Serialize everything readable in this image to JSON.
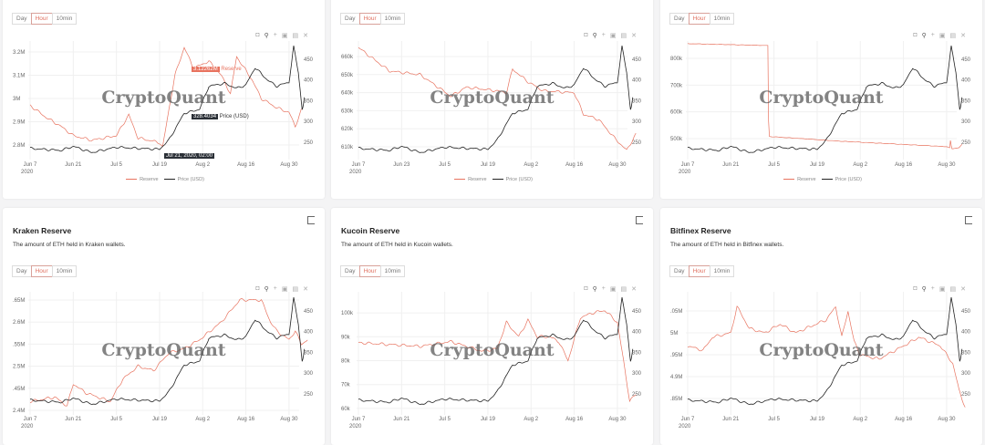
{
  "ranges": [
    "Day",
    "Hour",
    "10min"
  ],
  "active_range": "Hour",
  "watermark": "CryptoQuant",
  "toolbar_icons": [
    "camera-icon",
    "zoom-icon",
    "pan-icon",
    "autoscale-icon",
    "reset-icon",
    "close-icon"
  ],
  "legend": {
    "reserve": "Reserve",
    "price": "Price (USD)"
  },
  "colors": {
    "reserve": "#e8735f",
    "price": "#222222"
  },
  "year_label": "2020",
  "tooltip": {
    "reserve_value": "3.12262M",
    "reserve_label": "Reserve",
    "price_value": "328.4034",
    "price_label": "Price (USD)",
    "x_label": "Jul 21, 2020, 02:00"
  },
  "chart_data": [
    {
      "type": "line",
      "title": "",
      "description": "",
      "x_ticks": [
        "Jun 7",
        "Jun 21",
        "Jul 5",
        "Jul 19",
        "Aug 2",
        "Aug 16",
        "Aug 30"
      ],
      "y_ticks": [
        {
          "v": 3.2,
          "l": "3.2M"
        },
        {
          "v": 3.1,
          "l": "3.1M"
        },
        {
          "v": 3.0,
          "l": "3M"
        },
        {
          "v": 2.9,
          "l": "2.9M"
        },
        {
          "v": 2.8,
          "l": "2.8M"
        }
      ],
      "ylim": [
        2.737,
        3.247
      ],
      "y2_ticks": [
        450,
        400,
        350,
        300,
        250
      ],
      "y2lim": [
        208,
        494
      ],
      "reserve": [
        [
          0,
          2.97
        ],
        [
          5,
          2.92
        ],
        [
          10,
          2.88
        ],
        [
          14,
          2.84
        ],
        [
          20,
          2.82
        ],
        [
          28,
          2.84
        ],
        [
          32,
          2.93
        ],
        [
          35,
          2.83
        ],
        [
          42,
          2.81
        ],
        [
          43,
          2.79
        ],
        [
          45,
          2.95
        ],
        [
          47,
          3.1
        ],
        [
          50,
          3.22
        ],
        [
          53,
          3.13
        ],
        [
          58,
          3.16
        ],
        [
          62,
          3.1
        ],
        [
          65,
          3.02
        ],
        [
          67,
          3.18
        ],
        [
          70,
          3.12
        ],
        [
          72,
          3.08
        ],
        [
          75,
          3.0
        ],
        [
          80,
          2.96
        ],
        [
          84,
          2.94
        ],
        [
          86,
          2.88
        ],
        [
          88,
          2.95
        ]
      ]
    },
    {
      "type": "line",
      "title": "",
      "description": "",
      "x_ticks": [
        "Jun 7",
        "Jun 23",
        "Jul 5",
        "Jul 19",
        "Aug 2",
        "Aug 16",
        "Aug 30"
      ],
      "y_ticks": [
        {
          "v": 660,
          "l": "660k"
        },
        {
          "v": 650,
          "l": "650k"
        },
        {
          "v": 640,
          "l": "640k"
        },
        {
          "v": 630,
          "l": "630k"
        },
        {
          "v": 620,
          "l": "620k"
        },
        {
          "v": 610,
          "l": "610k"
        }
      ],
      "ylim": [
        602.9,
        668.6
      ],
      "y2_ticks": [
        450,
        400,
        350,
        300,
        250
      ],
      "y2lim": [
        208,
        494
      ],
      "reserve": [
        [
          0,
          665
        ],
        [
          10,
          652
        ],
        [
          20,
          650
        ],
        [
          30,
          638
        ],
        [
          35,
          643
        ],
        [
          45,
          641
        ],
        [
          48,
          640
        ],
        [
          50,
          653
        ],
        [
          55,
          646
        ],
        [
          60,
          641
        ],
        [
          70,
          640
        ],
        [
          73,
          628
        ],
        [
          78,
          625
        ],
        [
          83,
          615
        ],
        [
          87,
          608
        ],
        [
          90,
          617
        ]
      ]
    },
    {
      "type": "line",
      "title": "",
      "description": "",
      "x_ticks": [
        "Jun 7",
        "Jun 21",
        "Jul 5",
        "Jul 19",
        "Aug 2",
        "Aug 16",
        "Aug 30"
      ],
      "y_ticks": [
        {
          "v": 800,
          "l": "800k"
        },
        {
          "v": 700,
          "l": "700k"
        },
        {
          "v": 600,
          "l": "600k"
        },
        {
          "v": 500,
          "l": "500k"
        }
      ],
      "ylim": [
        421.6,
        864.8
      ],
      "y2_ticks": [
        450,
        400,
        350,
        300,
        250
      ],
      "y2lim": [
        208,
        494
      ],
      "reserve": [
        [
          0,
          855
        ],
        [
          26,
          848
        ],
        [
          26.3,
          508
        ],
        [
          50,
          490
        ],
        [
          84,
          470
        ],
        [
          85,
          465
        ],
        [
          85.3,
          498
        ],
        [
          85.6,
          462
        ],
        [
          88,
          466
        ],
        [
          89,
          478
        ]
      ]
    },
    {
      "type": "line",
      "title": "Kraken Reserve",
      "description": "The amount of ETH held in Kraken wallets.",
      "x_ticks": [
        "Jun 7",
        "Jun 21",
        "Jul 5",
        "Jul 19",
        "Aug 2",
        "Aug 16",
        "Aug 30"
      ],
      "y_ticks": [
        {
          "v": 2.65,
          "l": ".65M"
        },
        {
          "v": 2.6,
          "l": "2.6M"
        },
        {
          "v": 2.55,
          "l": ".55M"
        },
        {
          "v": 2.5,
          "l": "2.5M"
        },
        {
          "v": 2.45,
          "l": ".45M"
        },
        {
          "v": 2.4,
          "l": "2.4M"
        }
      ],
      "ylim": [
        2.3897,
        2.6686
      ],
      "y2_ticks": [
        450,
        400,
        350,
        300,
        250
      ],
      "y2lim": [
        199.5,
        496
      ],
      "reserve": [
        [
          0,
          2.42
        ],
        [
          8,
          2.43
        ],
        [
          12,
          2.41
        ],
        [
          14,
          2.46
        ],
        [
          18,
          2.44
        ],
        [
          22,
          2.43
        ],
        [
          26,
          2.42
        ],
        [
          30,
          2.47
        ],
        [
          35,
          2.5
        ],
        [
          40,
          2.49
        ],
        [
          45,
          2.53
        ],
        [
          50,
          2.54
        ],
        [
          55,
          2.56
        ],
        [
          62,
          2.6
        ],
        [
          68,
          2.65
        ],
        [
          75,
          2.65
        ],
        [
          78,
          2.6
        ],
        [
          80,
          2.58
        ],
        [
          84,
          2.56
        ],
        [
          86,
          2.58
        ],
        [
          88,
          2.55
        ],
        [
          90,
          2.56
        ]
      ]
    },
    {
      "type": "line",
      "title": "Kucoin Reserve",
      "description": "The amount of ETH held in Kucoin wallets.",
      "x_ticks": [
        "Jun 7",
        "Jun 21",
        "Jul 5",
        "Jul 19",
        "Aug 2",
        "Aug 16",
        "Aug 30"
      ],
      "y_ticks": [
        {
          "v": 100,
          "l": "100k"
        },
        {
          "v": 90,
          "l": "90k"
        },
        {
          "v": 80,
          "l": "80k"
        },
        {
          "v": 70,
          "l": "70k"
        },
        {
          "v": 60,
          "l": "60k"
        }
      ],
      "ylim": [
        57.3,
        108.8
      ],
      "y2_ticks": [
        450,
        400,
        350,
        300,
        250
      ],
      "y2lim": [
        199.5,
        496
      ],
      "reserve": [
        [
          0,
          87.5
        ],
        [
          20,
          86
        ],
        [
          30,
          88
        ],
        [
          40,
          84
        ],
        [
          45,
          85
        ],
        [
          48,
          96
        ],
        [
          52,
          90
        ],
        [
          55,
          97
        ],
        [
          58,
          90
        ],
        [
          62,
          90
        ],
        [
          65,
          88
        ],
        [
          68,
          80
        ],
        [
          72,
          98
        ],
        [
          76,
          100
        ],
        [
          80,
          101
        ],
        [
          84,
          96
        ],
        [
          86,
          80
        ],
        [
          88,
          63
        ],
        [
          90,
          66
        ]
      ]
    },
    {
      "type": "line",
      "title": "Bitfinex Reserve",
      "description": "The amount of ETH held in Bitfinex wallets.",
      "x_ticks": [
        "Jun 7",
        "Jun 21",
        "Jul 5",
        "Jul 19",
        "Aug 2",
        "Aug 16",
        "Aug 30"
      ],
      "y_ticks": [
        {
          "v": 5.05,
          "l": ".05M"
        },
        {
          "v": 5.0,
          "l": "5M"
        },
        {
          "v": 4.95,
          "l": ".95M"
        },
        {
          "v": 4.9,
          "l": "4.9M"
        },
        {
          "v": 4.85,
          "l": ".85M"
        }
      ],
      "ylim": [
        4.8125,
        5.0938
      ],
      "y2_ticks": [
        450,
        400,
        350,
        300,
        250
      ],
      "y2lim": [
        199.5,
        496
      ],
      "reserve": [
        [
          0,
          4.97
        ],
        [
          5,
          4.96
        ],
        [
          8,
          4.99
        ],
        [
          14,
          5.0
        ],
        [
          16,
          5.06
        ],
        [
          20,
          5.01
        ],
        [
          25,
          5.0
        ],
        [
          30,
          5.02
        ],
        [
          35,
          5.0
        ],
        [
          45,
          5.03
        ],
        [
          48,
          5.06
        ],
        [
          50,
          4.99
        ],
        [
          52,
          5.05
        ],
        [
          54,
          4.98
        ],
        [
          56,
          4.95
        ],
        [
          62,
          4.94
        ],
        [
          70,
          4.97
        ],
        [
          75,
          4.99
        ],
        [
          82,
          4.97
        ],
        [
          86,
          4.93
        ],
        [
          88,
          4.87
        ],
        [
          90,
          4.83
        ]
      ]
    }
  ],
  "price": [
    [
      0,
      235
    ],
    [
      10,
      230
    ],
    [
      14,
      240
    ],
    [
      20,
      225
    ],
    [
      28,
      238
    ],
    [
      35,
      235
    ],
    [
      42,
      233
    ],
    [
      45,
      255
    ],
    [
      50,
      320
    ],
    [
      53,
      325
    ],
    [
      55,
      330
    ],
    [
      58,
      385
    ],
    [
      63,
      392
    ],
    [
      67,
      380
    ],
    [
      70,
      388
    ],
    [
      73,
      430
    ],
    [
      77,
      400
    ],
    [
      80,
      385
    ],
    [
      84,
      395
    ],
    [
      85.5,
      480
    ],
    [
      87,
      420
    ],
    [
      88.3,
      325
    ],
    [
      89,
      358
    ]
  ]
}
